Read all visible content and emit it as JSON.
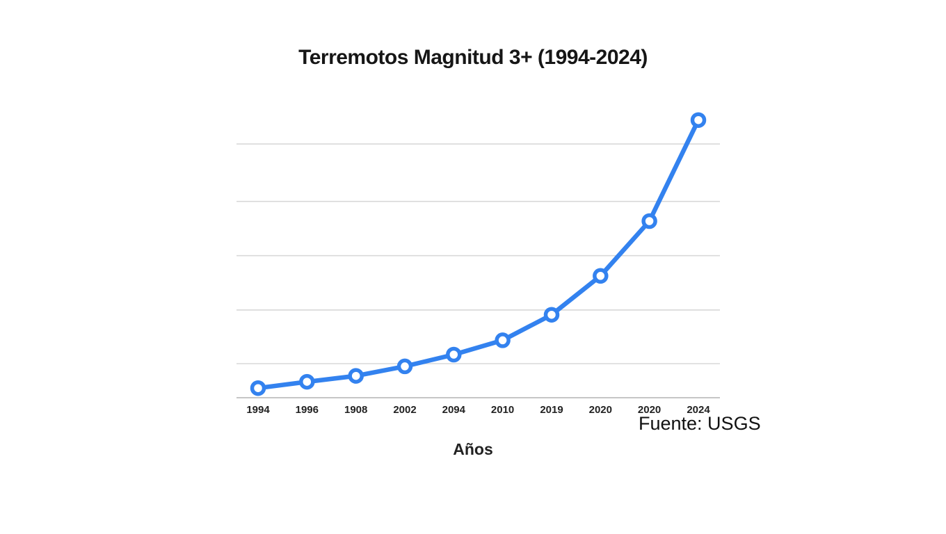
{
  "chart_data": {
    "type": "line",
    "title": "Terremotos Magnitud 3+ (1994-2024)",
    "xlabel": "Años",
    "ylabel": "",
    "source_note": "Fuente: USGS",
    "categories": [
      "1994",
      "1996",
      "1908",
      "2002",
      "2094",
      "2010",
      "2019",
      "2020",
      "2020",
      "2024"
    ],
    "series": [
      {
        "name": "Terremotos Magnitud 3+",
        "values": [
          0.18,
          0.3,
          0.41,
          0.59,
          0.81,
          1.08,
          1.56,
          2.29,
          3.32,
          5.22
        ]
      }
    ],
    "ylim": [
      0,
      5.5
    ],
    "y_tick_labels": "none (axis unlabeled; values estimated in gridline units, 1 unit = one gridline spacing)",
    "grid": true,
    "gridline_units": [
      0.64,
      1.65,
      2.67,
      3.69,
      4.77
    ],
    "legend_position": "none",
    "marker_style": "open-circle",
    "colors": {
      "line": "#3382ef",
      "marker_fill": "#ffffff",
      "grid": "#d8d8d8",
      "axis_line": "#c6c6c6",
      "title_text": "#161616",
      "tick_text": "#222222"
    }
  }
}
